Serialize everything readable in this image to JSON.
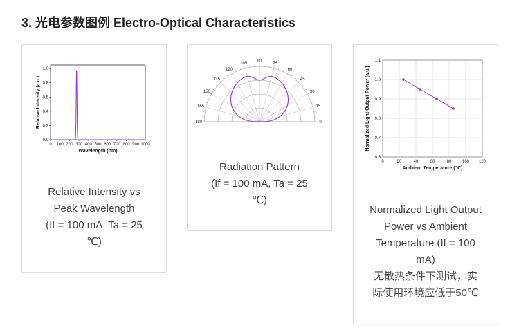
{
  "section": {
    "title": "3. 光电参数图例 Electro-Optical Characteristics"
  },
  "cards": [
    {
      "caption_lines": [
        "Relative Intensity vs",
        "Peak Wavelength",
        "(If = 100 mA, Ta = 25",
        "℃)"
      ],
      "chart": {
        "type": "line",
        "xlabel": "Wavelength (nm)",
        "ylabel": "Relative Intensity (a.u.)",
        "x_ticks": [
          "0",
          "100",
          "200",
          "300",
          "400",
          "500",
          "600",
          "700",
          "800",
          "900",
          "1000"
        ],
        "y_ticks": [
          "0.0",
          "0.2",
          "0.4",
          "0.6",
          "0.8",
          "1.0"
        ],
        "xlim": [
          0,
          1000
        ],
        "ylim": [
          0,
          1.05
        ],
        "line_color": "#9933cc"
      }
    },
    {
      "caption_lines": [
        "Radiation Pattern",
        "(If = 100 mA, Ta = 25",
        "℃)"
      ],
      "chart": {
        "type": "polar",
        "angle_ticks": [
          "0",
          "15",
          "30",
          "45",
          "60",
          "75",
          "90",
          "105",
          "120",
          "135",
          "150",
          "165",
          "180"
        ],
        "line_color": "#9933cc"
      }
    },
    {
      "caption_lines": [
        "Normalized Light Output",
        "Power vs Ambient",
        "Temperature (If = 100",
        "mA)",
        "无散热条件下测试，实",
        "际使用环境应低于50℃"
      ],
      "chart": {
        "type": "line",
        "xlabel": "Ambient Temperature (℃)",
        "ylabel": "Normalized Light Output Power (a.u.)",
        "x_ticks": [
          "0",
          "20",
          "40",
          "60",
          "80",
          "100",
          "120"
        ],
        "y_ticks": [
          "0.6",
          "0.7",
          "0.8",
          "0.9",
          "1.0",
          "1.1"
        ],
        "xlim": [
          0,
          120
        ],
        "ylim": [
          0.6,
          1.1
        ],
        "line_color": "#9933cc",
        "points": [
          {
            "x": 25,
            "y": 1.0
          },
          {
            "x": 45,
            "y": 0.95
          },
          {
            "x": 65,
            "y": 0.9
          },
          {
            "x": 85,
            "y": 0.85
          }
        ]
      }
    }
  ]
}
